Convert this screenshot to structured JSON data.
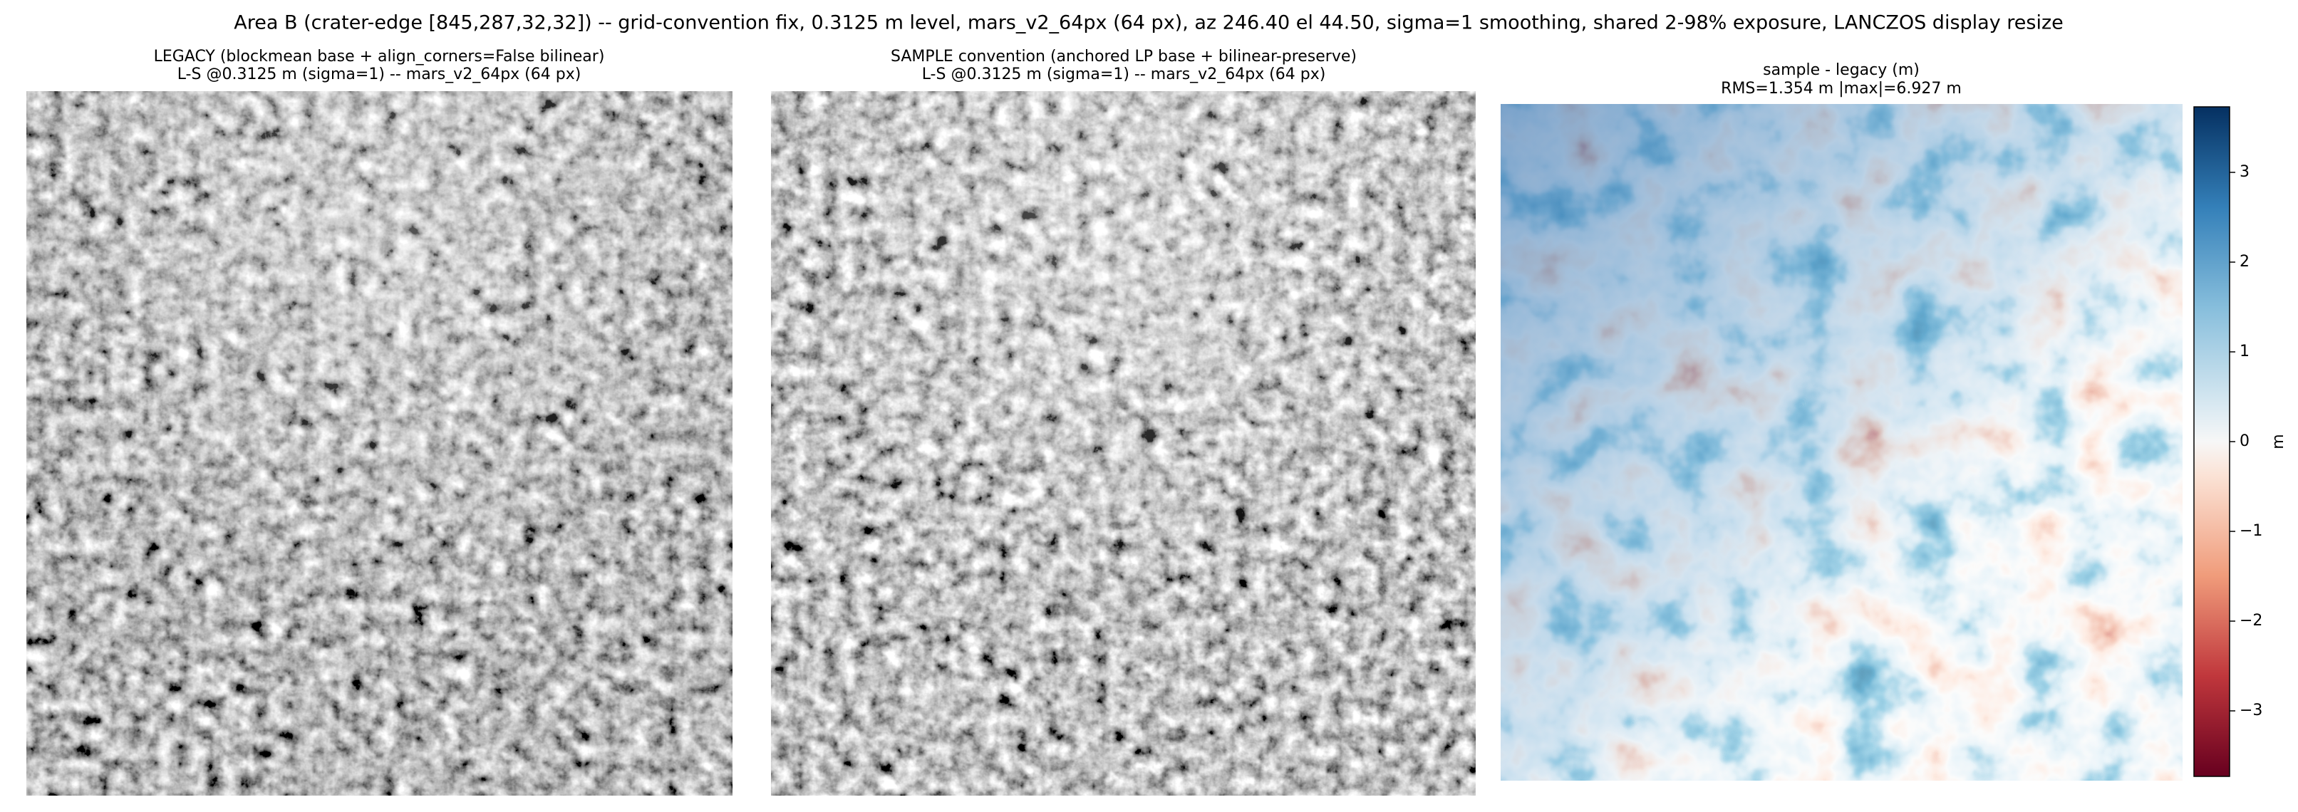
{
  "title": "Area B (crater-edge [845,287,32,32]) -- grid-convention fix, 0.3125 m level, mars_v2_64px (64 px), az 246.40 el 44.50, sigma=1 smoothing, shared 2-98% exposure, LANCZOS display resize",
  "chart_data": [
    {
      "type": "image",
      "title": [
        "LEGACY (blockmean base + align_corners=False bilinear)",
        "L-S @0.3125 m (sigma=1) -- mars_v2_64px (64 px)"
      ],
      "colormap": "gray"
    },
    {
      "type": "image",
      "title": [
        "SAMPLE convention (anchored LP base + bilinear-preserve)",
        "L-S @0.3125 m (sigma=1) -- mars_v2_64px (64 px)"
      ],
      "colormap": "gray"
    },
    {
      "type": "image",
      "title": [
        "sample - legacy (m)",
        "RMS=1.354 m  |max|=6.927 m"
      ],
      "colormap": "RdBu",
      "colorbar": {
        "label": "m",
        "ylim": [
          -3.73,
          3.73
        ],
        "yticks": [
          {
            "value": -3,
            "label": "−3"
          },
          {
            "value": -2,
            "label": "−2"
          },
          {
            "value": -1,
            "label": "−1"
          },
          0,
          1,
          2,
          3
        ]
      }
    }
  ]
}
